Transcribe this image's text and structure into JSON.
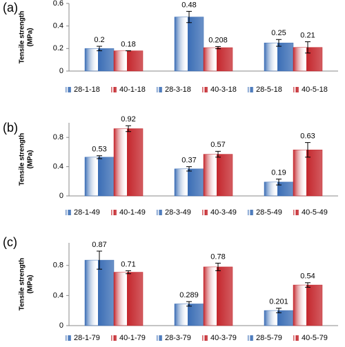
{
  "chart_data": [
    {
      "type": "bar",
      "label": "(a)",
      "ylabel": [
        "Tensile strength",
        "(MPa)"
      ],
      "categories": [
        null,
        null,
        null
      ],
      "series": [
        {
          "name": "28-1-18",
          "color": "#3a6db5",
          "values": [
            0.2,
            null,
            null
          ],
          "errors": [
            0.02,
            null,
            null
          ]
        },
        {
          "name": "40-1-18",
          "color": "#c4262c",
          "values": [
            0.18,
            null,
            null
          ],
          "errors": [
            0.0,
            null,
            null
          ]
        },
        {
          "name": "28-3-18",
          "color": "#3a6db5",
          "values": [
            null,
            0.48,
            null
          ],
          "errors": [
            null,
            0.05,
            null
          ]
        },
        {
          "name": "40-3-18",
          "color": "#c4262c",
          "values": [
            null,
            0.208,
            null
          ],
          "errors": [
            null,
            0.01,
            null
          ]
        },
        {
          "name": "28-5-18",
          "color": "#3a6db5",
          "values": [
            null,
            null,
            0.25
          ],
          "errors": [
            null,
            null,
            0.03
          ]
        },
        {
          "name": "40-5-18",
          "color": "#c4262c",
          "values": [
            null,
            null,
            0.21
          ],
          "errors": [
            null,
            null,
            0.05
          ]
        }
      ],
      "ylim": [
        0,
        0.6
      ],
      "yticks": [
        0,
        0.2,
        0.4,
        0.6
      ]
    },
    {
      "type": "bar",
      "label": "(b)",
      "ylabel": [
        "Tensile strength",
        "(MPa)"
      ],
      "categories": [
        null,
        null,
        null
      ],
      "series": [
        {
          "name": "28-1-49",
          "color": "#3a6db5",
          "values": [
            0.53,
            null,
            null
          ],
          "errors": [
            0.02,
            null,
            null
          ]
        },
        {
          "name": "40-1-49",
          "color": "#c4262c",
          "values": [
            0.92,
            null,
            null
          ],
          "errors": [
            0.04,
            null,
            null
          ]
        },
        {
          "name": "28-3-49",
          "color": "#3a6db5",
          "values": [
            null,
            0.37,
            null
          ],
          "errors": [
            null,
            0.03,
            null
          ]
        },
        {
          "name": "40-3-49",
          "color": "#c4262c",
          "values": [
            null,
            0.57,
            null
          ],
          "errors": [
            null,
            0.04,
            null
          ]
        },
        {
          "name": "28-5-49",
          "color": "#3a6db5",
          "values": [
            null,
            null,
            0.19
          ],
          "errors": [
            null,
            null,
            0.04
          ]
        },
        {
          "name": "40-5-49",
          "color": "#c4262c",
          "values": [
            null,
            null,
            0.63
          ],
          "errors": [
            null,
            null,
            0.1
          ]
        }
      ],
      "ylim": [
        0,
        1
      ],
      "yticks": [
        0,
        0.4,
        0.8
      ]
    },
    {
      "type": "bar",
      "label": "(c)",
      "ylabel": [
        "Tensile strength",
        "(MPa)"
      ],
      "categories": [
        null,
        null,
        null
      ],
      "series": [
        {
          "name": "28-1-79",
          "color": "#3a6db5",
          "values": [
            0.87,
            null,
            null
          ],
          "errors": [
            0.12,
            null,
            null
          ]
        },
        {
          "name": "40-1-79",
          "color": "#c4262c",
          "values": [
            0.71,
            null,
            null
          ],
          "errors": [
            0.02,
            null,
            null
          ]
        },
        {
          "name": "28-3-79",
          "color": "#3a6db5",
          "values": [
            null,
            0.289,
            null
          ],
          "errors": [
            null,
            0.03,
            null
          ]
        },
        {
          "name": "40-3-79",
          "color": "#c4262c",
          "values": [
            null,
            0.78,
            null
          ],
          "errors": [
            null,
            0.05,
            null
          ]
        },
        {
          "name": "28-5-79",
          "color": "#3a6db5",
          "values": [
            null,
            null,
            0.201
          ],
          "errors": [
            null,
            null,
            0.03
          ]
        },
        {
          "name": "40-5-79",
          "color": "#c4262c",
          "values": [
            null,
            null,
            0.54
          ],
          "errors": [
            null,
            null,
            0.03
          ]
        }
      ],
      "ylim": [
        0,
        1.1
      ],
      "yticks": [
        0,
        0.4,
        0.8
      ]
    }
  ]
}
